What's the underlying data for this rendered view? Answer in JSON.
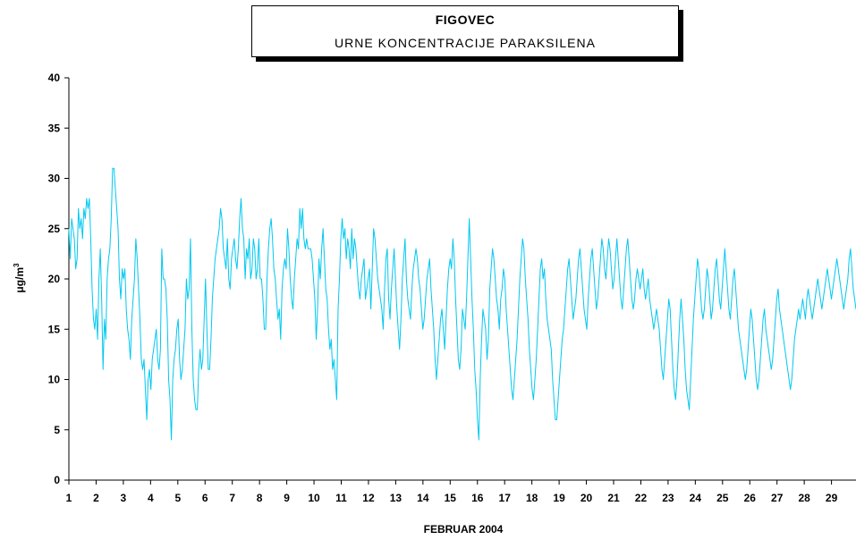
{
  "title_box": {
    "title": "FIGOVEC",
    "subtitle": "URNE KONCENTRACIJE PARAKSILENA"
  },
  "colors": {
    "series": "#00c8f0",
    "axis": "#000000"
  },
  "chart_data": {
    "type": "line",
    "title": "FIGOVEC",
    "subtitle": "URNE KONCENTRACIJE PARAKSILENA",
    "xlabel": "FEBRUAR  2004",
    "ylabel_base": "μg/m",
    "ylabel_sup": "3",
    "xlim": [
      1,
      29.9
    ],
    "ylim": [
      0,
      40
    ],
    "yticks": [
      0,
      5,
      10,
      15,
      20,
      25,
      30,
      35,
      40
    ],
    "xticks": [
      1,
      2,
      3,
      4,
      5,
      6,
      7,
      8,
      9,
      10,
      11,
      12,
      13,
      14,
      15,
      16,
      17,
      18,
      19,
      20,
      21,
      22,
      23,
      24,
      25,
      26,
      27,
      28,
      29
    ],
    "grid": false,
    "legend": "none",
    "series_sampling": "hourly, x in days of February 2004",
    "series": [
      {
        "values": [
          25,
          22,
          26,
          25,
          24,
          21,
          22,
          27,
          25,
          26,
          24,
          27,
          26,
          28,
          27,
          28,
          24,
          19,
          16,
          15,
          17,
          14,
          20,
          23,
          18,
          11,
          16,
          14,
          20,
          22,
          23,
          26,
          31,
          31,
          29,
          27,
          25,
          20,
          18,
          21,
          20,
          21,
          17,
          15,
          14,
          12,
          16,
          18,
          20,
          24,
          22,
          19,
          16,
          12,
          11,
          12,
          9,
          6,
          10,
          11,
          9,
          12,
          13,
          14,
          15,
          12,
          11,
          13,
          23,
          20,
          20,
          19,
          16,
          10,
          8,
          4,
          10,
          12,
          13,
          15,
          16,
          12,
          10,
          11,
          13,
          15,
          20,
          18,
          19,
          24,
          15,
          10,
          8,
          7,
          7,
          11,
          13,
          11,
          12,
          16,
          20,
          15,
          11,
          11,
          14,
          18,
          20,
          22,
          23,
          24,
          25,
          27,
          26,
          23,
          22,
          21,
          24,
          20,
          19,
          22,
          23,
          24,
          22,
          21,
          23,
          26,
          28,
          25,
          24,
          20,
          23,
          22,
          24,
          20,
          21,
          24,
          23,
          20,
          21,
          24,
          20,
          20,
          18,
          15,
          15,
          20,
          23,
          25,
          26,
          24,
          21,
          20,
          18,
          16,
          17,
          14,
          19,
          21,
          22,
          21,
          25,
          23,
          20,
          18,
          17,
          20,
          22,
          24,
          23,
          27,
          25,
          27,
          24,
          23,
          24,
          23,
          23,
          23,
          22,
          20,
          18,
          14,
          17,
          22,
          20,
          23,
          25,
          22,
          19,
          18,
          15,
          13,
          14,
          11,
          12,
          10,
          8,
          17,
          20,
          24,
          26,
          24,
          25,
          22,
          24,
          23,
          21,
          25,
          22,
          24,
          23,
          21,
          19,
          18,
          20,
          21,
          22,
          18,
          19,
          20,
          21,
          17,
          21,
          25,
          24,
          22,
          20,
          19,
          18,
          17,
          15,
          19,
          22,
          23,
          18,
          16,
          19,
          21,
          23,
          20,
          17,
          15,
          13,
          16,
          20,
          22,
          24,
          20,
          18,
          17,
          16,
          19,
          21,
          22,
          23,
          22,
          20,
          19,
          17,
          15,
          16,
          18,
          20,
          21,
          22,
          19,
          17,
          15,
          12,
          10,
          12,
          14,
          16,
          17,
          15,
          13,
          16,
          19,
          21,
          22,
          21,
          24,
          22,
          18,
          15,
          12,
          11,
          13,
          17,
          16,
          15,
          18,
          22,
          26,
          22,
          18,
          15,
          11,
          9,
          6,
          4,
          10,
          14,
          17,
          16,
          15,
          12,
          14,
          19,
          21,
          23,
          22,
          20,
          18,
          17,
          15,
          18,
          19,
          21,
          20,
          17,
          15,
          13,
          11,
          9,
          8,
          10,
          12,
          14,
          17,
          20,
          22,
          24,
          23,
          20,
          18,
          16,
          13,
          11,
          9,
          8,
          10,
          12,
          15,
          18,
          21,
          22,
          20,
          21,
          18,
          16,
          15,
          14,
          13,
          10,
          8,
          6,
          6,
          8,
          10,
          12,
          14,
          15,
          17,
          19,
          21,
          22,
          20,
          18,
          16,
          17,
          18,
          20,
          22,
          23,
          21,
          19,
          17,
          16,
          15,
          18,
          20,
          22,
          23,
          21,
          19,
          17,
          18,
          20,
          22,
          24,
          23,
          21,
          20,
          22,
          24,
          23,
          21,
          19,
          20,
          22,
          24,
          22,
          20,
          18,
          17,
          19,
          21,
          23,
          24,
          22,
          20,
          18,
          17,
          18,
          20,
          21,
          20,
          19,
          20,
          21,
          19,
          18,
          19,
          20,
          18,
          17,
          16,
          15,
          16,
          17,
          16,
          15,
          13,
          11,
          10,
          12,
          14,
          16,
          18,
          17,
          14,
          11,
          9,
          8,
          10,
          13,
          16,
          18,
          16,
          14,
          11,
          9,
          8,
          7,
          10,
          13,
          16,
          18,
          20,
          22,
          21,
          19,
          17,
          16,
          17,
          19,
          21,
          20,
          18,
          16,
          17,
          19,
          21,
          22,
          20,
          18,
          17,
          19,
          21,
          23,
          21,
          19,
          17,
          16,
          18,
          20,
          21,
          19,
          17,
          15,
          14,
          13,
          12,
          11,
          10,
          11,
          13,
          15,
          17,
          16,
          14,
          12,
          10,
          9,
          10,
          12,
          14,
          16,
          17,
          15,
          14,
          13,
          12,
          11,
          12,
          14,
          16,
          18,
          19,
          17,
          16,
          15,
          14,
          13,
          12,
          11,
          10,
          9,
          10,
          12,
          14,
          15,
          16,
          17,
          16,
          17,
          18,
          17,
          16,
          18,
          19,
          18,
          17,
          16,
          17,
          18,
          19,
          20,
          19,
          18,
          17,
          18,
          19,
          20,
          21,
          20,
          19,
          18,
          19,
          20,
          21,
          22,
          21,
          20,
          19,
          18,
          17,
          18,
          19,
          20,
          22,
          23,
          21,
          19,
          18,
          17
        ]
      }
    ]
  }
}
